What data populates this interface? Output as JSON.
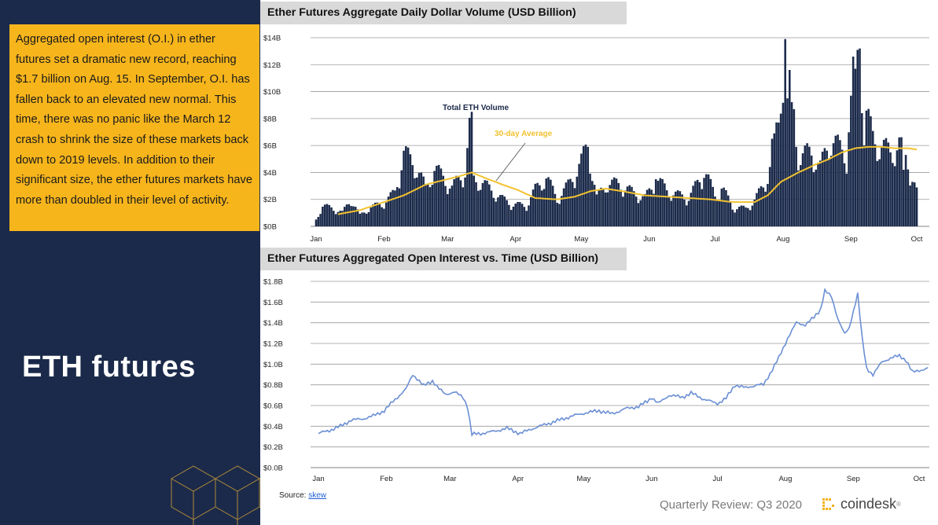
{
  "callout": {
    "text": "Aggregated open interest (O.I.) in ether futures set a dramatic new record, reaching $1.7 billion on Aug. 15. In September, O.I. has fallen back to an elevated new normal. This time, there was no panic like the March 12 crash to shrink the size of these markets back down to 2019 levels. In addition to their significant size, the ether futures markets have more than doubled in their level of activity."
  },
  "section_title": "ETH futures",
  "source": {
    "label": "Source:",
    "link": "skew"
  },
  "footer": {
    "review": "Quarterly Review: Q3 2020",
    "brand": "coindesk",
    "brand_mark": "®"
  },
  "colors": {
    "navy": "#1b2a4a",
    "gold": "#f7b51c",
    "bar": "#1c2b4b",
    "avg": "#f2c230",
    "oi_line": "#6b8fd4"
  },
  "chart_data": [
    {
      "type": "bar",
      "title": "Ether Futures Aggregate Daily Dollar Volume (USD Billion)",
      "y_ticks": [
        "$0B",
        "$2B",
        "$4B",
        "$6B",
        "$8B",
        "$10B",
        "$12B",
        "$14B"
      ],
      "ylim": [
        0,
        14
      ],
      "x_ticks": [
        "Jan",
        "Feb",
        "Mar",
        "Apr",
        "May",
        "Jun",
        "Jul",
        "Aug",
        "Sep",
        "Oct"
      ],
      "x_tick_days": [
        0,
        31,
        60,
        91,
        121,
        152,
        182,
        213,
        244,
        274
      ],
      "annotations": {
        "total_label": "Total ETH Volume",
        "avg_label": "30-day Average"
      },
      "series": [
        {
          "name": "Total ETH Volume",
          "anchors": [
            [
              0,
              0.5
            ],
            [
              3,
              1.5
            ],
            [
              8,
              1.3
            ],
            [
              12,
              1.0
            ],
            [
              16,
              2.0
            ],
            [
              20,
              0.8
            ],
            [
              25,
              1.4
            ],
            [
              31,
              1.7
            ],
            [
              36,
              2.5
            ],
            [
              40,
              5.3
            ],
            [
              45,
              4.6
            ],
            [
              50,
              2.8
            ],
            [
              54,
              4.2
            ],
            [
              58,
              3.6
            ],
            [
              62,
              2.8
            ],
            [
              68,
              4.1
            ],
            [
              71,
              8.5
            ],
            [
              72,
              3.4
            ],
            [
              76,
              3.2
            ],
            [
              80,
              2.6
            ],
            [
              85,
              2.0
            ],
            [
              90,
              1.6
            ],
            [
              96,
              1.5
            ],
            [
              100,
              2.7
            ],
            [
              105,
              3.6
            ],
            [
              110,
              2.0
            ],
            [
              115,
              3.0
            ],
            [
              121,
              4.7
            ],
            [
              124,
              5.9
            ],
            [
              128,
              2.1
            ],
            [
              133,
              3.2
            ],
            [
              140,
              3.0
            ],
            [
              145,
              2.4
            ],
            [
              150,
              2.1
            ],
            [
              156,
              3.4
            ],
            [
              160,
              2.6
            ],
            [
              165,
              2.3
            ],
            [
              170,
              2.1
            ],
            [
              175,
              3.4
            ],
            [
              178,
              3.8
            ],
            [
              182,
              2.2
            ],
            [
              186,
              2.6
            ],
            [
              190,
              1.4
            ],
            [
              196,
              1.3
            ],
            [
              200,
              1.9
            ],
            [
              205,
              3.2
            ],
            [
              208,
              5.0
            ],
            [
              211,
              7.7
            ],
            [
              214,
              13.9
            ],
            [
              217,
              8.0
            ],
            [
              221,
              5.0
            ],
            [
              226,
              5.5
            ],
            [
              230,
              4.3
            ],
            [
              235,
              6.5
            ],
            [
              239,
              5.6
            ],
            [
              242,
              5.2
            ],
            [
              244,
              9.7
            ],
            [
              246,
              12.6
            ],
            [
              248,
              13.1
            ],
            [
              251,
              8.2
            ],
            [
              254,
              6.4
            ],
            [
              258,
              5.8
            ],
            [
              262,
              5.4
            ],
            [
              266,
              6.0
            ],
            [
              270,
              4.7
            ],
            [
              274,
              2.5
            ]
          ],
          "specials": [
            [
              71,
              8.5
            ],
            [
              124,
              5.9
            ],
            [
              155,
              3.5
            ],
            [
              177,
              3.6
            ],
            [
              185,
              2.8
            ],
            [
              208,
              6.5
            ],
            [
              211,
              7.7
            ],
            [
              214,
              13.9
            ],
            [
              215,
              9.5
            ],
            [
              218,
              8.7
            ],
            [
              244,
              9.7
            ],
            [
              245,
              12.6
            ],
            [
              246,
              11.7
            ],
            [
              247,
              13.1
            ],
            [
              248,
              13.2
            ],
            [
              249,
              8.4
            ],
            [
              250,
              6.0
            ],
            [
              268,
              4.2
            ]
          ]
        },
        {
          "name": "30-day Average",
          "anchors": [
            [
              10,
              0.9
            ],
            [
              20,
              1.2
            ],
            [
              31,
              1.8
            ],
            [
              40,
              2.3
            ],
            [
              50,
              3.1
            ],
            [
              60,
              3.5
            ],
            [
              65,
              3.7
            ],
            [
              71,
              4.0
            ],
            [
              77,
              3.6
            ],
            [
              85,
              3.1
            ],
            [
              92,
              2.7
            ],
            [
              100,
              2.1
            ],
            [
              110,
              2.0
            ],
            [
              118,
              2.2
            ],
            [
              125,
              2.6
            ],
            [
              132,
              2.8
            ],
            [
              140,
              2.6
            ],
            [
              150,
              2.3
            ],
            [
              160,
              2.2
            ],
            [
              170,
              2.1
            ],
            [
              180,
              2.0
            ],
            [
              190,
              1.8
            ],
            [
              200,
              1.8
            ],
            [
              206,
              2.3
            ],
            [
              212,
              3.3
            ],
            [
              220,
              4.0
            ],
            [
              228,
              4.6
            ],
            [
              234,
              5.0
            ],
            [
              240,
              5.5
            ],
            [
              246,
              5.8
            ],
            [
              252,
              5.9
            ],
            [
              258,
              5.9
            ],
            [
              264,
              5.8
            ],
            [
              270,
              5.8
            ],
            [
              274,
              5.7
            ]
          ]
        }
      ]
    },
    {
      "type": "line",
      "title": "Ether Futures Aggregated Open Interest vs. Time (USD Billion)",
      "y_ticks": [
        "$0.0B",
        "$0.2B",
        "$0.4B",
        "$0.6B",
        "$0.8B",
        "$1.0B",
        "$1.2B",
        "$1.4B",
        "$1.6B",
        "$1.8B"
      ],
      "ylim": [
        0,
        1.8
      ],
      "x_ticks": [
        "Jan",
        "Feb",
        "Mar",
        "Apr",
        "May",
        "Jun",
        "Jul",
        "Aug",
        "Sep",
        "Oct"
      ],
      "x_tick_days": [
        0,
        31,
        60,
        91,
        121,
        152,
        182,
        213,
        244,
        274
      ],
      "series": [
        {
          "name": "Open Interest",
          "anchors": [
            [
              0,
              0.33
            ],
            [
              5,
              0.36
            ],
            [
              10,
              0.4
            ],
            [
              15,
              0.46
            ],
            [
              20,
              0.47
            ],
            [
              25,
              0.5
            ],
            [
              30,
              0.55
            ],
            [
              35,
              0.66
            ],
            [
              40,
              0.76
            ],
            [
              43,
              0.9
            ],
            [
              45,
              0.86
            ],
            [
              48,
              0.79
            ],
            [
              52,
              0.84
            ],
            [
              55,
              0.76
            ],
            [
              58,
              0.71
            ],
            [
              62,
              0.73
            ],
            [
              66,
              0.68
            ],
            [
              68,
              0.59
            ],
            [
              70,
              0.32
            ],
            [
              74,
              0.33
            ],
            [
              80,
              0.35
            ],
            [
              86,
              0.38
            ],
            [
              92,
              0.33
            ],
            [
              98,
              0.38
            ],
            [
              104,
              0.42
            ],
            [
              110,
              0.46
            ],
            [
              116,
              0.5
            ],
            [
              122,
              0.53
            ],
            [
              128,
              0.55
            ],
            [
              134,
              0.52
            ],
            [
              140,
              0.57
            ],
            [
              146,
              0.59
            ],
            [
              150,
              0.64
            ],
            [
              152,
              0.68
            ],
            [
              155,
              0.62
            ],
            [
              160,
              0.7
            ],
            [
              166,
              0.68
            ],
            [
              170,
              0.72
            ],
            [
              176,
              0.66
            ],
            [
              182,
              0.62
            ],
            [
              186,
              0.67
            ],
            [
              190,
              0.8
            ],
            [
              195,
              0.77
            ],
            [
              200,
              0.8
            ],
            [
              203,
              0.8
            ],
            [
              206,
              0.91
            ],
            [
              210,
              1.06
            ],
            [
              214,
              1.25
            ],
            [
              218,
              1.4
            ],
            [
              222,
              1.38
            ],
            [
              226,
              1.45
            ],
            [
              229,
              1.53
            ],
            [
              231,
              1.71
            ],
            [
              234,
              1.65
            ],
            [
              237,
              1.44
            ],
            [
              240,
              1.29
            ],
            [
              242,
              1.34
            ],
            [
              245,
              1.6
            ],
            [
              246,
              1.68
            ],
            [
              248,
              1.25
            ],
            [
              250,
              0.96
            ],
            [
              253,
              0.9
            ],
            [
              257,
              1.02
            ],
            [
              261,
              1.06
            ],
            [
              265,
              1.08
            ],
            [
              268,
              1.04
            ],
            [
              271,
              0.92
            ],
            [
              274,
              0.94
            ],
            [
              278,
              0.96
            ]
          ]
        }
      ]
    }
  ]
}
